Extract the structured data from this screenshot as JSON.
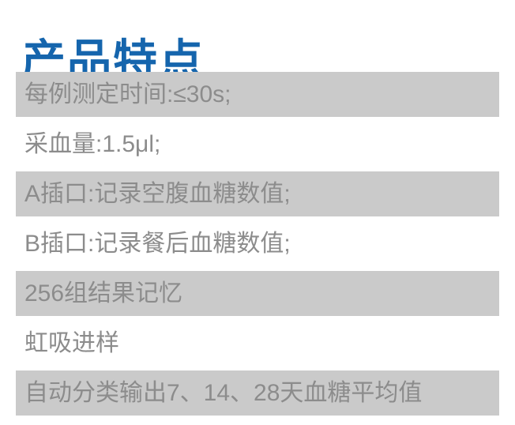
{
  "page": {
    "title": "产品特点",
    "background_color": "#ffffff",
    "title_color": "#1565ad"
  },
  "features": {
    "row_shaded_color": "#cacaca",
    "row_text_color": "#8c8c8c",
    "items": [
      {
        "text": "每例测定时间:≤30s;",
        "shaded": true
      },
      {
        "text": "采血量:1.5μl;",
        "shaded": false
      },
      {
        "text": "A插口:记录空腹血糖数值;",
        "shaded": true
      },
      {
        "text": "B插口:记录餐后血糖数值;",
        "shaded": false
      },
      {
        "text": "256组结果记忆",
        "shaded": true
      },
      {
        "text": "虹吸进样",
        "shaded": false
      },
      {
        "text": "自动分类输出7、14、28天血糖平均值",
        "shaded": true
      }
    ]
  }
}
